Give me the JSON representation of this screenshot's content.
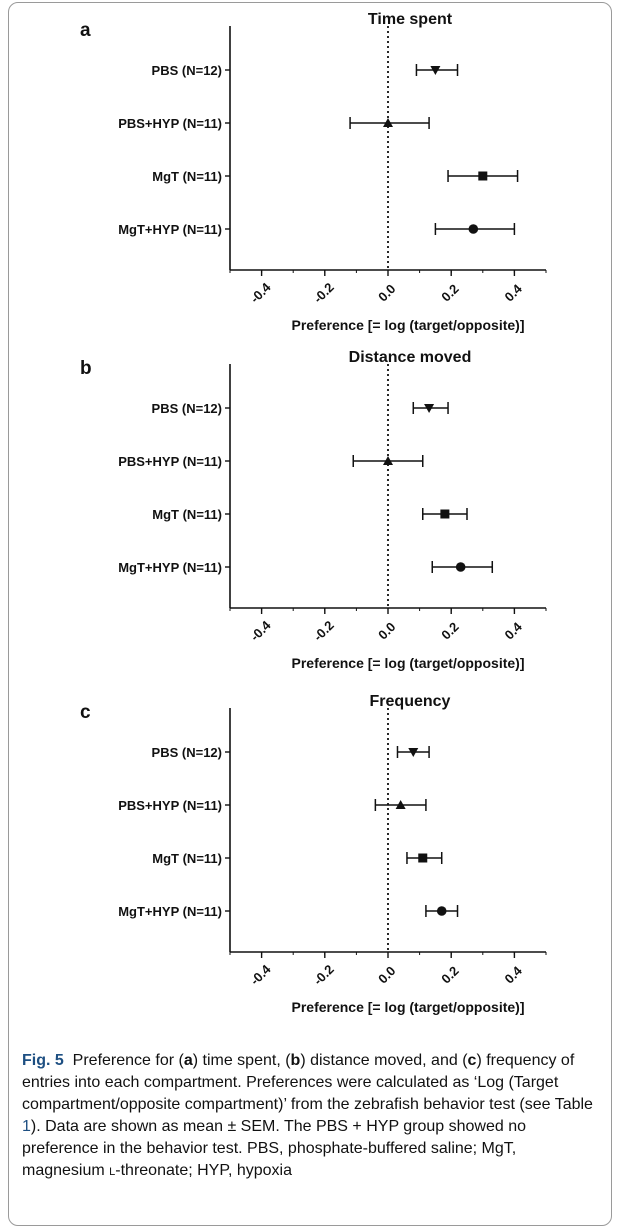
{
  "chart_data": [
    {
      "panel_label": "a",
      "type": "forest",
      "title": "Time spent",
      "xlabel": "Preference [= log (target/opposite)]",
      "xlim": [
        -0.5,
        0.5
      ],
      "xticks": [
        "-0.4",
        "-0.2",
        "0.0",
        "0.2",
        "0.4"
      ],
      "reference_line_x": 0,
      "categories": [
        "PBS (N=12)",
        "PBS+HYP (N=11)",
        "MgT (N=11)",
        "MgT+HYP (N=11)"
      ],
      "markers": [
        "triangle-down",
        "triangle-up",
        "square",
        "circle"
      ],
      "values": [
        0.15,
        0.0,
        0.3,
        0.27
      ],
      "err_low": [
        0.09,
        -0.12,
        0.19,
        0.15
      ],
      "err_high": [
        0.22,
        0.13,
        0.41,
        0.4
      ]
    },
    {
      "panel_label": "b",
      "type": "forest",
      "title": "Distance moved",
      "xlabel": "Preference [= log (target/opposite)]",
      "xlim": [
        -0.5,
        0.5
      ],
      "xticks": [
        "-0.4",
        "-0.2",
        "0.0",
        "0.2",
        "0.4"
      ],
      "reference_line_x": 0,
      "categories": [
        "PBS (N=12)",
        "PBS+HYP (N=11)",
        "MgT (N=11)",
        "MgT+HYP (N=11)"
      ],
      "markers": [
        "triangle-down",
        "triangle-up",
        "square",
        "circle"
      ],
      "values": [
        0.13,
        0.0,
        0.18,
        0.23
      ],
      "err_low": [
        0.08,
        -0.11,
        0.11,
        0.14
      ],
      "err_high": [
        0.19,
        0.11,
        0.25,
        0.33
      ]
    },
    {
      "panel_label": "c",
      "type": "forest",
      "title": "Frequency",
      "xlabel": "Preference [= log (target/opposite)]",
      "xlim": [
        -0.5,
        0.5
      ],
      "xticks": [
        "-0.4",
        "-0.2",
        "0.0",
        "0.2",
        "0.4"
      ],
      "reference_line_x": 0,
      "categories": [
        "PBS (N=12)",
        "PBS+HYP (N=11)",
        "MgT (N=11)",
        "MgT+HYP (N=11)"
      ],
      "markers": [
        "triangle-down",
        "triangle-up",
        "square",
        "circle"
      ],
      "values": [
        0.08,
        0.04,
        0.11,
        0.17
      ],
      "err_low": [
        0.03,
        -0.04,
        0.06,
        0.12
      ],
      "err_high": [
        0.13,
        0.12,
        0.17,
        0.22
      ]
    }
  ],
  "caption": {
    "fig_label": "Fig. 5",
    "t1": "Preference for (",
    "a": "a",
    "t2": ") time spent, (",
    "b": "b",
    "t3": ") distance moved, and (",
    "c": "c",
    "t4": ") frequency of entries into each compartment. Preferences were calculated as ‘Log (Target compartment/opposite compartment)’ from the zebrafish behavior test (see Table ",
    "table_ref": "1",
    "t5": "). Data are shown as mean ± SEM. The PBS + HYP group showed no preference in the behavior test. PBS, phosphate-buffered saline; MgT, magnesium ",
    "l_prefix": "l",
    "t6": "-threonate; HYP, hypoxia"
  }
}
